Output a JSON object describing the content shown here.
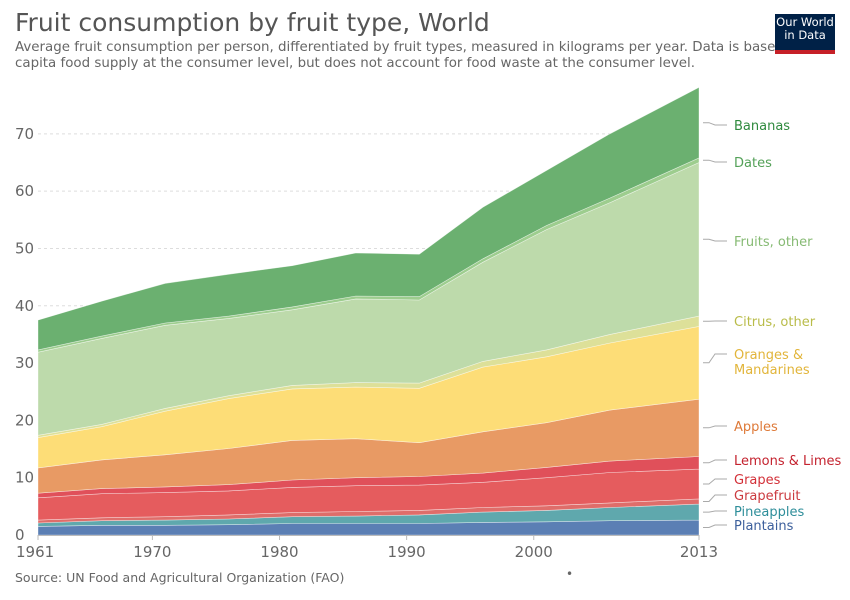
{
  "header": {
    "title": "Fruit consumption by fruit type, World",
    "subtitle": "Average fruit consumption per person, differentiated by fruit types, measured in kilograms per year. Data is based on per capita food supply at the consumer level, but does not account for food waste at the consumer level.",
    "logo_line1": "Our World",
    "logo_line2": "in Data"
  },
  "footer": {
    "source": "Source: UN Food and Agricultural Organization (FAO)",
    "dot": "•"
  },
  "chart_data": {
    "type": "area",
    "stacked": true,
    "title": "Fruit consumption by fruit type, World",
    "ylabel": "",
    "xlabel": "",
    "x": [
      1961,
      1966,
      1971,
      1976,
      1981,
      1986,
      1991,
      1996,
      2001,
      2006,
      2013
    ],
    "xlim": [
      1961,
      2013
    ],
    "ylim": [
      0,
      78
    ],
    "x_ticks": [
      1961,
      1970,
      1980,
      1990,
      2000,
      2013
    ],
    "y_ticks": [
      0,
      10,
      20,
      30,
      40,
      50,
      60,
      70
    ],
    "grid": "horizontal dashed",
    "legend": "right, inline labels",
    "series": [
      {
        "name": "Plantains",
        "color": "#5b7fb4",
        "values": [
          1.5,
          1.7,
          1.7,
          1.8,
          2.0,
          2.0,
          2.0,
          2.2,
          2.3,
          2.5,
          2.6
        ]
      },
      {
        "name": "Pineapples",
        "color": "#5fa8ad",
        "values": [
          0.6,
          0.8,
          0.9,
          1.0,
          1.2,
          1.3,
          1.5,
          1.8,
          2.0,
          2.3,
          2.8
        ]
      },
      {
        "name": "Grapefruit",
        "color": "#df6d6a",
        "values": [
          0.5,
          0.5,
          0.6,
          0.7,
          0.7,
          0.8,
          0.8,
          0.8,
          0.8,
          0.8,
          0.9
        ]
      },
      {
        "name": "Grapes",
        "color": "#e55c5e",
        "values": [
          3.9,
          4.2,
          4.2,
          4.2,
          4.4,
          4.5,
          4.4,
          4.4,
          4.9,
          5.3,
          5.2
        ]
      },
      {
        "name": "Lemons & Limes",
        "color": "#e0505a",
        "values": [
          0.8,
          0.9,
          1.0,
          1.1,
          1.3,
          1.4,
          1.5,
          1.6,
          1.8,
          2.0,
          2.2
        ]
      },
      {
        "name": "Apples",
        "color": "#e89a64",
        "values": [
          4.4,
          5.0,
          5.6,
          6.3,
          6.9,
          6.8,
          5.9,
          7.2,
          7.8,
          8.9,
          10.0
        ]
      },
      {
        "name": "Oranges & Mandarines",
        "color": "#fddd77",
        "values": [
          5.3,
          5.8,
          7.6,
          8.7,
          9.0,
          9.0,
          9.5,
          11.3,
          11.5,
          11.7,
          12.7
        ]
      },
      {
        "name": "Citrus, other",
        "color": "#dde099",
        "values": [
          0.4,
          0.4,
          0.5,
          0.5,
          0.6,
          0.8,
          0.9,
          1.0,
          1.2,
          1.5,
          1.8
        ]
      },
      {
        "name": "Fruits, other",
        "color": "#bddaab",
        "values": [
          14.5,
          15.0,
          14.5,
          13.5,
          13.2,
          14.6,
          14.5,
          17.3,
          21.0,
          23.0,
          26.8
        ]
      },
      {
        "name": "Dates",
        "color": "#9dcd8e",
        "values": [
          0.4,
          0.4,
          0.4,
          0.4,
          0.5,
          0.5,
          0.6,
          0.6,
          0.7,
          0.8,
          0.8
        ]
      },
      {
        "name": "Bananas",
        "color": "#6bb070",
        "values": [
          5.2,
          6.1,
          6.9,
          7.3,
          7.2,
          7.5,
          7.4,
          9.0,
          9.6,
          11.2,
          12.3
        ]
      }
    ],
    "labels": [
      {
        "text": "Bananas",
        "color": "#2f8a3e"
      },
      {
        "text": "Dates",
        "color": "#54a158"
      },
      {
        "text": "Fruits, other",
        "color": "#86ba73"
      },
      {
        "text": "Citrus, other",
        "color": "#b9bc49"
      },
      {
        "text": "Oranges &",
        "text2": "Mandarines",
        "color": "#e2b53a"
      },
      {
        "text": "Apples",
        "color": "#de7a39"
      },
      {
        "text": "Lemons & Limes",
        "color": "#c4232f"
      },
      {
        "text": "Grapes",
        "color": "#d33038"
      },
      {
        "text": "Grapefruit",
        "color": "#cb3a3f"
      },
      {
        "text": "Pineapples",
        "color": "#2e8e9a"
      },
      {
        "text": "Plantains",
        "color": "#3c5f9c"
      }
    ]
  }
}
